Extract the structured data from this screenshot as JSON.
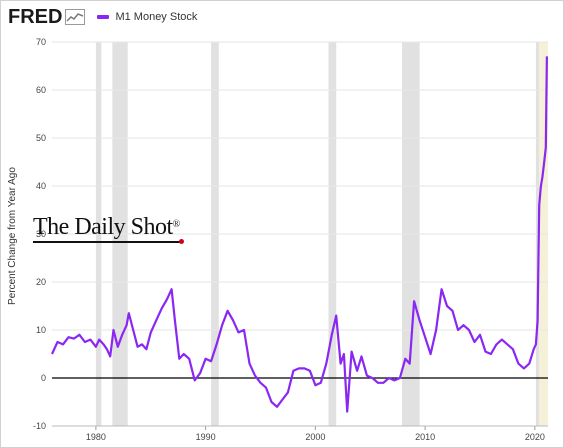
{
  "header": {
    "logo_text": "FRED",
    "logo_icon": "line-graph-icon",
    "legend_label": "M1 Money Stock",
    "legend_color": "#8b27f2"
  },
  "watermark": {
    "text": "The Daily Shot",
    "mark": "®"
  },
  "chart_data": {
    "type": "line",
    "title": "",
    "xlabel": "",
    "ylabel": "Percent Change from Year Ago",
    "xlim": [
      1976.0,
      2021.2
    ],
    "ylim": [
      -10,
      70
    ],
    "x_ticks": [
      1980,
      1990,
      2000,
      2010,
      2020
    ],
    "y_ticks": [
      -10,
      0,
      10,
      20,
      30,
      40,
      50,
      60,
      70
    ],
    "grid": true,
    "zero_line": true,
    "legend": "top-left",
    "recessions": [
      [
        1980.0,
        1980.5
      ],
      [
        1981.5,
        1982.9
      ],
      [
        1990.5,
        1991.2
      ],
      [
        2001.2,
        2001.9
      ],
      [
        2007.9,
        2009.5
      ],
      [
        2020.1,
        2020.4
      ]
    ],
    "highlight_band": [
      2020.4,
      2021.2
    ],
    "series": [
      {
        "name": "M1 Money Stock",
        "color": "#8b27f2",
        "x": [
          1976.0,
          1976.5,
          1977.0,
          1977.5,
          1978.0,
          1978.5,
          1979.0,
          1979.5,
          1980.0,
          1980.3,
          1980.7,
          1981.0,
          1981.3,
          1981.6,
          1982.0,
          1982.4,
          1982.8,
          1983.0,
          1983.4,
          1983.8,
          1984.2,
          1984.6,
          1985.0,
          1985.5,
          1986.0,
          1986.5,
          1986.9,
          1987.2,
          1987.6,
          1988.0,
          1988.5,
          1989.0,
          1989.5,
          1990.0,
          1990.5,
          1991.0,
          1991.5,
          1992.0,
          1992.5,
          1993.0,
          1993.5,
          1994.0,
          1994.5,
          1995.0,
          1995.5,
          1996.0,
          1996.5,
          1997.0,
          1997.5,
          1998.0,
          1998.5,
          1999.0,
          1999.5,
          2000.0,
          2000.5,
          2001.0,
          2001.5,
          2001.9,
          2002.3,
          2002.6,
          2002.9,
          2003.3,
          2003.8,
          2004.2,
          2004.7,
          2005.2,
          2005.7,
          2006.2,
          2006.7,
          2007.2,
          2007.7,
          2008.2,
          2008.6,
          2009.0,
          2009.5,
          2010.0,
          2010.5,
          2011.0,
          2011.5,
          2012.0,
          2012.5,
          2013.0,
          2013.5,
          2014.0,
          2014.5,
          2015.0,
          2015.5,
          2016.0,
          2016.5,
          2017.0,
          2017.5,
          2018.0,
          2018.5,
          2019.0,
          2019.5,
          2019.9,
          2020.1,
          2020.25,
          2020.4,
          2020.55,
          2020.7,
          2020.85,
          2021.0,
          2021.1
        ],
        "values": [
          5.0,
          7.5,
          7.0,
          8.5,
          8.2,
          9.0,
          7.5,
          8.0,
          6.5,
          8.0,
          7.0,
          6.0,
          4.5,
          10.0,
          6.5,
          9.0,
          11.0,
          13.5,
          10.0,
          6.5,
          7.0,
          6.0,
          9.5,
          12.0,
          14.5,
          16.5,
          18.5,
          12.0,
          4.0,
          5.0,
          4.0,
          -0.5,
          1.0,
          4.0,
          3.5,
          7.0,
          11.0,
          14.0,
          12.0,
          9.5,
          10.0,
          3.0,
          0.5,
          -1.0,
          -2.0,
          -5.0,
          -6.0,
          -4.5,
          -3.0,
          1.5,
          2.0,
          2.0,
          1.5,
          -1.5,
          -1.0,
          3.0,
          9.0,
          13.0,
          3.0,
          5.0,
          -7.0,
          5.5,
          1.5,
          4.5,
          0.5,
          0.0,
          -1.0,
          -1.0,
          0.0,
          -0.5,
          0.0,
          4.0,
          3.0,
          16.0,
          12.0,
          8.5,
          5.0,
          10.0,
          18.5,
          15.0,
          14.0,
          10.0,
          11.0,
          10.0,
          7.5,
          9.0,
          5.5,
          5.0,
          7.0,
          8.0,
          7.0,
          6.0,
          3.0,
          2.0,
          3.0,
          6.0,
          7.0,
          12.0,
          36.0,
          40.0,
          42.0,
          45.0,
          48.0,
          67.0
        ]
      }
    ]
  }
}
